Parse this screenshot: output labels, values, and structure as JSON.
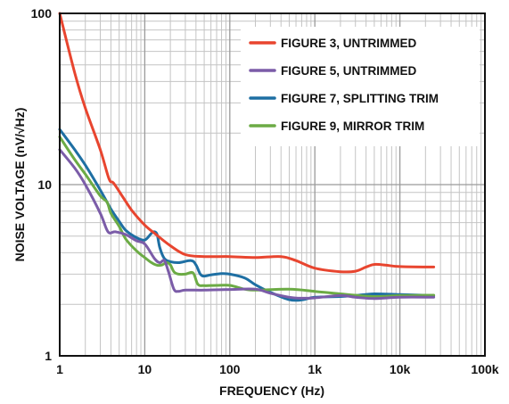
{
  "chart_data": {
    "type": "line",
    "title": "",
    "xlabel": "FREQUENCY (Hz)",
    "ylabel": "NOISE VOLTAGE (nV/√Hz)",
    "x_scale": "log",
    "y_scale": "log",
    "xlim": [
      1,
      100000
    ],
    "ylim": [
      1,
      100
    ],
    "grid": true,
    "legend_position": "top-right",
    "x_ticks": [
      {
        "value": 1,
        "label": "1"
      },
      {
        "value": 10,
        "label": "10"
      },
      {
        "value": 100,
        "label": "100"
      },
      {
        "value": 1000,
        "label": "1k"
      },
      {
        "value": 10000,
        "label": "10k"
      },
      {
        "value": 100000,
        "label": "100k"
      }
    ],
    "y_ticks": [
      {
        "value": 1,
        "label": "1"
      },
      {
        "value": 10,
        "label": "10"
      },
      {
        "value": 100,
        "label": "100"
      }
    ],
    "series": [
      {
        "name": "FIGURE 3, UNTRIMMED",
        "color": "#e8452f",
        "points": [
          [
            1,
            100
          ],
          [
            1.5,
            45
          ],
          [
            2,
            28
          ],
          [
            3,
            16
          ],
          [
            3.8,
            10.8
          ],
          [
            4.3,
            10.2
          ],
          [
            5.5,
            8.5
          ],
          [
            7,
            7.1
          ],
          [
            10,
            5.8
          ],
          [
            13,
            5.2
          ],
          [
            20,
            4.4
          ],
          [
            30,
            3.9
          ],
          [
            50,
            3.8
          ],
          [
            100,
            3.8
          ],
          [
            200,
            3.75
          ],
          [
            400,
            3.8
          ],
          [
            600,
            3.6
          ],
          [
            1000,
            3.25
          ],
          [
            2000,
            3.1
          ],
          [
            3000,
            3.12
          ],
          [
            4000,
            3.3
          ],
          [
            5000,
            3.42
          ],
          [
            7000,
            3.38
          ],
          [
            10000,
            3.32
          ],
          [
            25000,
            3.3
          ]
        ]
      },
      {
        "name": "FIGURE 5, UNTRIMMED",
        "color": "#7b5ca8",
        "points": [
          [
            1,
            16
          ],
          [
            1.5,
            12.5
          ],
          [
            2,
            10
          ],
          [
            3,
            6.8
          ],
          [
            3.7,
            5.3
          ],
          [
            4.5,
            5.3
          ],
          [
            6,
            5.1
          ],
          [
            8,
            4.7
          ],
          [
            10,
            4.5
          ],
          [
            13,
            3.7
          ],
          [
            15,
            3.5
          ],
          [
            17,
            3.6
          ],
          [
            19,
            3.1
          ],
          [
            22,
            2.45
          ],
          [
            25,
            2.38
          ],
          [
            30,
            2.42
          ],
          [
            50,
            2.42
          ],
          [
            100,
            2.44
          ],
          [
            200,
            2.45
          ],
          [
            300,
            2.32
          ],
          [
            500,
            2.2
          ],
          [
            700,
            2.17
          ],
          [
            1000,
            2.18
          ],
          [
            2000,
            2.25
          ],
          [
            3000,
            2.2
          ],
          [
            5000,
            2.16
          ],
          [
            10000,
            2.2
          ],
          [
            25000,
            2.2
          ]
        ]
      },
      {
        "name": "FIGURE 7, SPLITTING TRIM",
        "color": "#1e6fa3",
        "points": [
          [
            1,
            21
          ],
          [
            1.5,
            16
          ],
          [
            2,
            13
          ],
          [
            3,
            9.3
          ],
          [
            4,
            7.2
          ],
          [
            5,
            6.1
          ],
          [
            6,
            5.4
          ],
          [
            8,
            4.9
          ],
          [
            10,
            4.75
          ],
          [
            12,
            5.2
          ],
          [
            13,
            5.3
          ],
          [
            14,
            5.1
          ],
          [
            15,
            4.3
          ],
          [
            17,
            3.7
          ],
          [
            20,
            3.55
          ],
          [
            25,
            3.5
          ],
          [
            35,
            3.6
          ],
          [
            40,
            3.4
          ],
          [
            45,
            3.0
          ],
          [
            50,
            2.92
          ],
          [
            60,
            2.97
          ],
          [
            80,
            3.02
          ],
          [
            100,
            3.0
          ],
          [
            150,
            2.85
          ],
          [
            200,
            2.6
          ],
          [
            300,
            2.35
          ],
          [
            500,
            2.13
          ],
          [
            700,
            2.12
          ],
          [
            1000,
            2.2
          ],
          [
            2000,
            2.22
          ],
          [
            3000,
            2.25
          ],
          [
            5000,
            2.3
          ],
          [
            10000,
            2.28
          ],
          [
            25000,
            2.25
          ]
        ]
      },
      {
        "name": "FIGURE 9, MIRROR TRIM",
        "color": "#6cab45",
        "points": [
          [
            1,
            19
          ],
          [
            1.5,
            14
          ],
          [
            2,
            11.5
          ],
          [
            3,
            8.6
          ],
          [
            3.6,
            7.9
          ],
          [
            4,
            6.8
          ],
          [
            5,
            5.7
          ],
          [
            6,
            4.8
          ],
          [
            8,
            4.1
          ],
          [
            10,
            3.75
          ],
          [
            12,
            3.5
          ],
          [
            14,
            3.38
          ],
          [
            16,
            3.4
          ],
          [
            18,
            3.5
          ],
          [
            20,
            3.4
          ],
          [
            22,
            3.1
          ],
          [
            25,
            3.0
          ],
          [
            30,
            3.0
          ],
          [
            37,
            3.05
          ],
          [
            42,
            2.62
          ],
          [
            50,
            2.57
          ],
          [
            70,
            2.58
          ],
          [
            100,
            2.58
          ],
          [
            150,
            2.45
          ],
          [
            200,
            2.42
          ],
          [
            500,
            2.45
          ],
          [
            1000,
            2.38
          ],
          [
            2000,
            2.3
          ],
          [
            5000,
            2.22
          ],
          [
            10000,
            2.25
          ],
          [
            25000,
            2.26
          ]
        ]
      }
    ]
  }
}
